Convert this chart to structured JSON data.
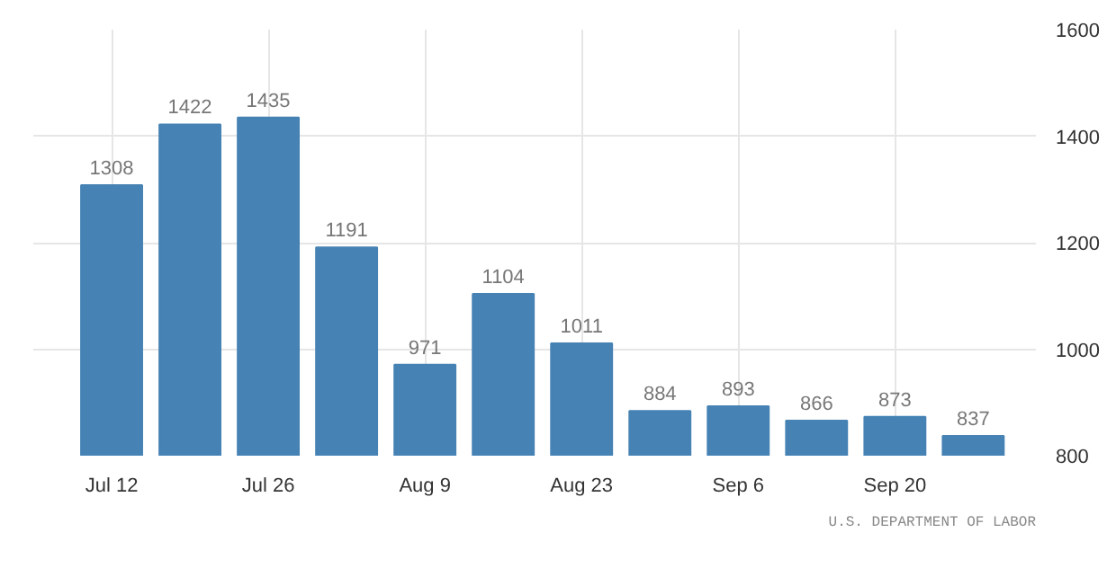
{
  "chart_data": {
    "type": "bar",
    "categories": [
      "Jul 12",
      null,
      "Jul 26",
      null,
      "Aug 9",
      null,
      "Aug 23",
      null,
      "Sep 6",
      null,
      "Sep 20",
      null
    ],
    "values": [
      1308,
      1422,
      1435,
      1191,
      971,
      1104,
      1011,
      884,
      893,
      866,
      873,
      837
    ],
    "color": "#4682b4",
    "ylim": [
      800,
      1600
    ],
    "yticks": [
      800,
      1000,
      1200,
      1400,
      1600
    ],
    "grid": true,
    "data_labels": true,
    "annotations": [
      "U.S. DEPARTMENT OF LABOR"
    ]
  }
}
